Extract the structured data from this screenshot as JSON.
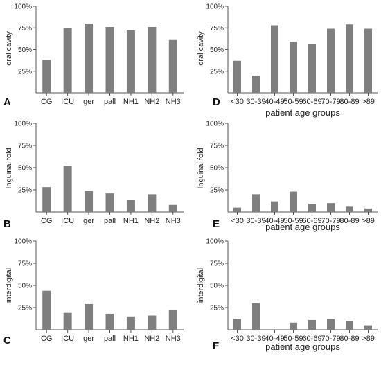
{
  "chart_data": [
    {
      "panel": "A",
      "type": "bar",
      "ylabel": "oral cavity",
      "xlabel": "",
      "ylim": [
        0,
        100
      ],
      "yticks": [
        "25%",
        "50%",
        "75%",
        "100%"
      ],
      "categories": [
        "CG",
        "ICU",
        "ger",
        "pall",
        "NH1",
        "NH2",
        "NH3"
      ],
      "values": [
        38,
        75,
        80,
        76,
        72,
        76,
        61
      ]
    },
    {
      "panel": "B",
      "type": "bar",
      "ylabel": "Inguinal fold",
      "xlabel": "",
      "ylim": [
        0,
        100
      ],
      "yticks": [
        "25%",
        "50%",
        "75%",
        "100%"
      ],
      "categories": [
        "CG",
        "ICU",
        "ger",
        "pall",
        "NH1",
        "NH2",
        "NH3"
      ],
      "values": [
        28,
        52,
        24,
        21,
        14,
        20,
        8
      ]
    },
    {
      "panel": "C",
      "type": "bar",
      "ylabel": "interdigital",
      "xlabel": "",
      "ylim": [
        0,
        100
      ],
      "yticks": [
        "25%",
        "50%",
        "75%",
        "100%"
      ],
      "categories": [
        "CG",
        "ICU",
        "ger",
        "pall",
        "NH1",
        "NH2",
        "NH3"
      ],
      "values": [
        44,
        19,
        29,
        18,
        15,
        16,
        22
      ]
    },
    {
      "panel": "D",
      "type": "bar",
      "ylabel": "oral cavity",
      "xlabel": "patient age groups",
      "ylim": [
        0,
        100
      ],
      "yticks": [
        "25%",
        "50%",
        "75%",
        "100%"
      ],
      "categories": [
        "<30",
        "30-39",
        "40-49",
        "50-59",
        "60-69",
        "70-79",
        "80-89",
        ">89"
      ],
      "values": [
        37,
        20,
        78,
        59,
        56,
        74,
        79,
        74
      ]
    },
    {
      "panel": "E",
      "type": "bar",
      "ylabel": "Inguinal fold",
      "xlabel": "patient age groups",
      "ylim": [
        0,
        100
      ],
      "yticks": [
        "25%",
        "50%",
        "75%",
        "100%"
      ],
      "categories": [
        "<30",
        "30-39",
        "40-49",
        "50-59",
        "60-69",
        "70-79",
        "80-89",
        ">89"
      ],
      "values": [
        5,
        20,
        12,
        23,
        9,
        10,
        6,
        4
      ]
    },
    {
      "panel": "F",
      "type": "bar",
      "ylabel": "interdigital",
      "xlabel": "patient age groups",
      "ylim": [
        0,
        100
      ],
      "yticks": [
        "25%",
        "50%",
        "75%",
        "100%"
      ],
      "categories": [
        "<30",
        "30-39",
        "40-49",
        "50-59",
        "60-69",
        "70-79",
        "80-89",
        ">89"
      ],
      "values": [
        12,
        30,
        0,
        8,
        11,
        12,
        10,
        5
      ]
    }
  ]
}
